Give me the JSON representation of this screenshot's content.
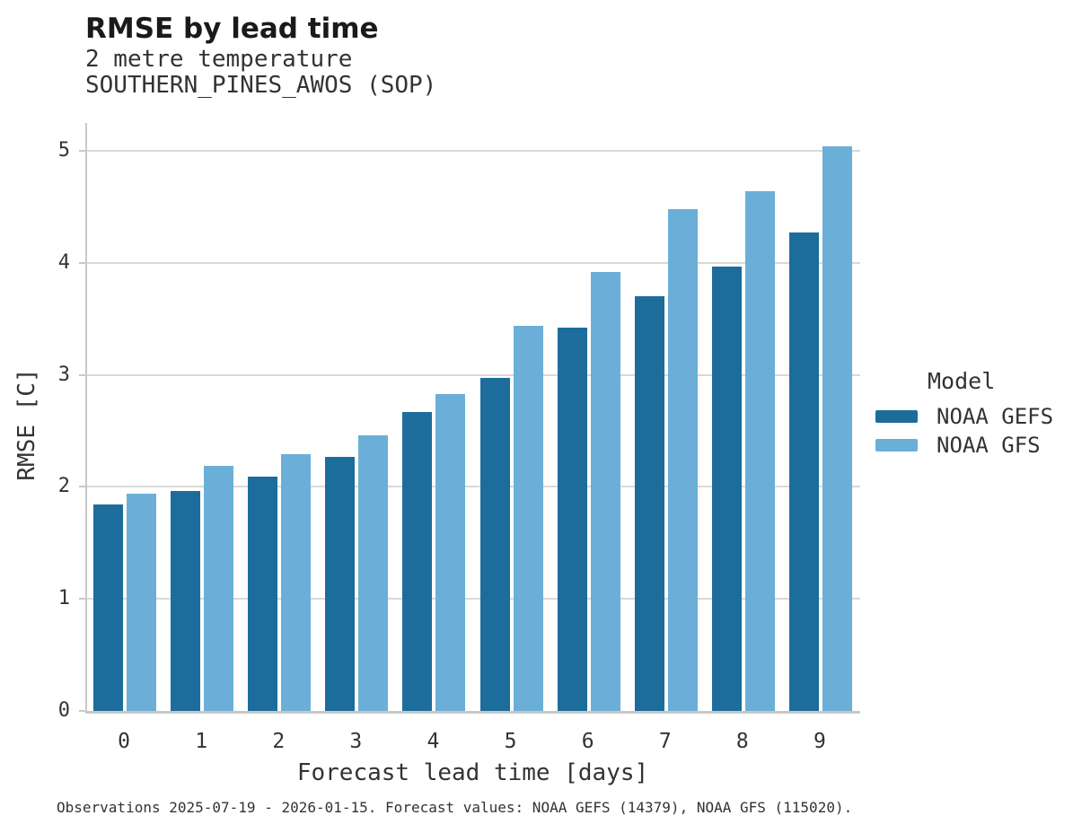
{
  "header": {
    "title": "RMSE by lead time",
    "subtitle_line1": "2 metre temperature",
    "subtitle_line2": "SOUTHERN_PINES_AWOS (SOP)"
  },
  "legend": {
    "title": "Model",
    "items": [
      {
        "label": "NOAA GEFS",
        "color": "#1c6d9c"
      },
      {
        "label": "NOAA GFS",
        "color": "#6bafd8"
      }
    ]
  },
  "footer": {
    "caption": "Observations 2025-07-19 - 2026-01-15. Forecast values: NOAA GEFS (14379), NOAA GFS (115020)."
  },
  "colors": {
    "noaa_gefs": "#1c6d9c",
    "noaa_gfs": "#6bafd8",
    "gridline": "#d9d9d9",
    "spine": "#c8c8c8",
    "text": "#333333"
  },
  "chart_data": {
    "type": "bar",
    "title": "RMSE by lead time",
    "subtitle": [
      "2 metre temperature",
      "SOUTHERN_PINES_AWOS (SOP)"
    ],
    "xlabel": "Forecast lead time [days]",
    "ylabel": "RMSE [C]",
    "categories": [
      "0",
      "1",
      "2",
      "3",
      "4",
      "5",
      "6",
      "7",
      "8",
      "9"
    ],
    "series": [
      {
        "name": "NOAA GEFS",
        "color": "#1c6d9c",
        "values": [
          1.84,
          1.96,
          2.09,
          2.27,
          2.67,
          2.97,
          3.42,
          3.7,
          3.97,
          4.27
        ]
      },
      {
        "name": "NOAA GFS",
        "color": "#6bafd8",
        "values": [
          1.94,
          2.19,
          2.29,
          2.46,
          2.83,
          3.44,
          3.92,
          4.48,
          4.64,
          5.04
        ]
      }
    ],
    "ylim": [
      0,
      5.25
    ],
    "yticks": [
      0,
      1,
      2,
      3,
      4,
      5
    ],
    "grid": true,
    "legend_position": "right",
    "legend_title": "Model"
  }
}
